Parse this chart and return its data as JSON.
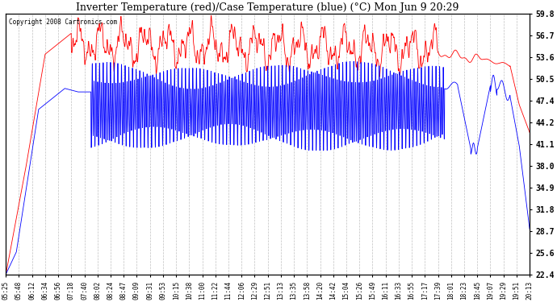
{
  "title": "Inverter Temperature (red)/Case Temperature (blue) (°C) Mon Jun 9 20:29",
  "copyright": "Copyright 2008 Cartronics.com",
  "ylabel_right_ticks": [
    59.8,
    56.7,
    53.6,
    50.5,
    47.4,
    44.2,
    41.1,
    38.0,
    34.9,
    31.8,
    28.7,
    25.6,
    22.4
  ],
  "ymin": 22.4,
  "ymax": 59.8,
  "background_color": "#ffffff",
  "plot_bg_color": "#ffffff",
  "grid_color": "#b0b0b0",
  "red_color": "#ff0000",
  "blue_color": "#0000ff",
  "x_tick_labels": [
    "05:25",
    "05:48",
    "06:12",
    "06:34",
    "06:56",
    "07:18",
    "07:40",
    "08:02",
    "08:24",
    "08:47",
    "09:09",
    "09:31",
    "09:53",
    "10:15",
    "10:38",
    "11:00",
    "11:22",
    "11:44",
    "12:06",
    "12:29",
    "12:51",
    "13:13",
    "13:35",
    "13:58",
    "14:20",
    "14:42",
    "15:04",
    "15:26",
    "15:49",
    "16:11",
    "16:33",
    "16:55",
    "17:17",
    "17:39",
    "18:01",
    "18:23",
    "18:45",
    "19:07",
    "19:29",
    "19:51",
    "20:13"
  ]
}
